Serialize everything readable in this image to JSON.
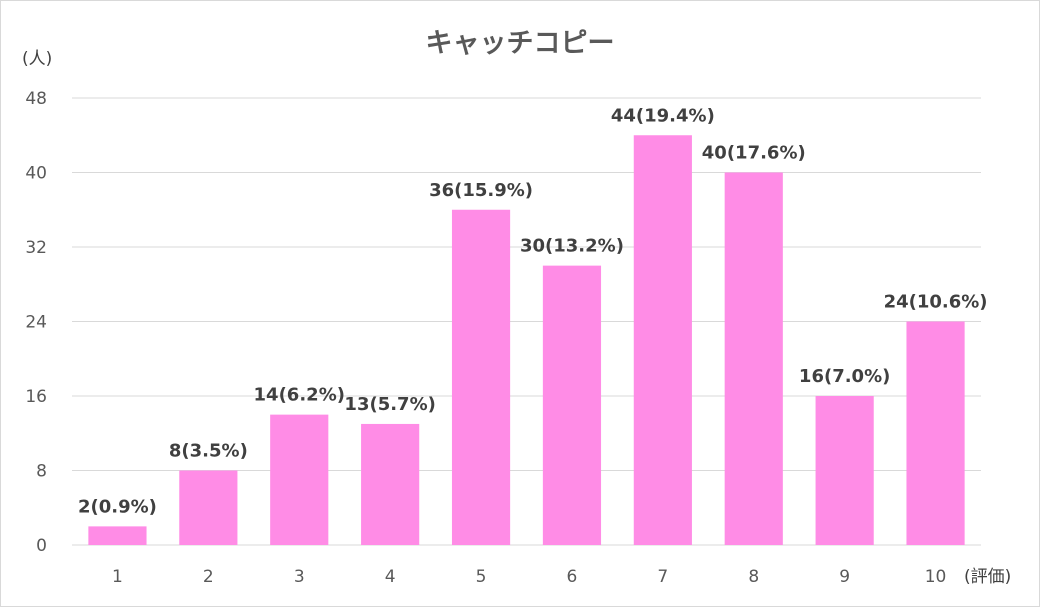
{
  "chart_data": {
    "type": "bar",
    "title": "キャッチコピー",
    "ylabel": "(人)",
    "xlabel": "(評価)",
    "categories": [
      "1",
      "2",
      "3",
      "4",
      "5",
      "6",
      "7",
      "8",
      "9",
      "10"
    ],
    "values": [
      2,
      8,
      14,
      13,
      36,
      30,
      44,
      40,
      16,
      24
    ],
    "data_labels": [
      "2(0.9%)",
      "8(3.5%)",
      "14(6.2%)",
      "13(5.7%)",
      "36(15.9%)",
      "30(13.2%)",
      "44(19.4%)",
      "40(17.6%)",
      "16(7.0%)",
      "24(10.6%)"
    ],
    "yticks": [
      "0",
      "8",
      "16",
      "24",
      "32",
      "40",
      "48"
    ],
    "ylim": [
      0,
      48
    ],
    "grid": true,
    "legend": "none",
    "bar_color": "#ff8ce6"
  }
}
